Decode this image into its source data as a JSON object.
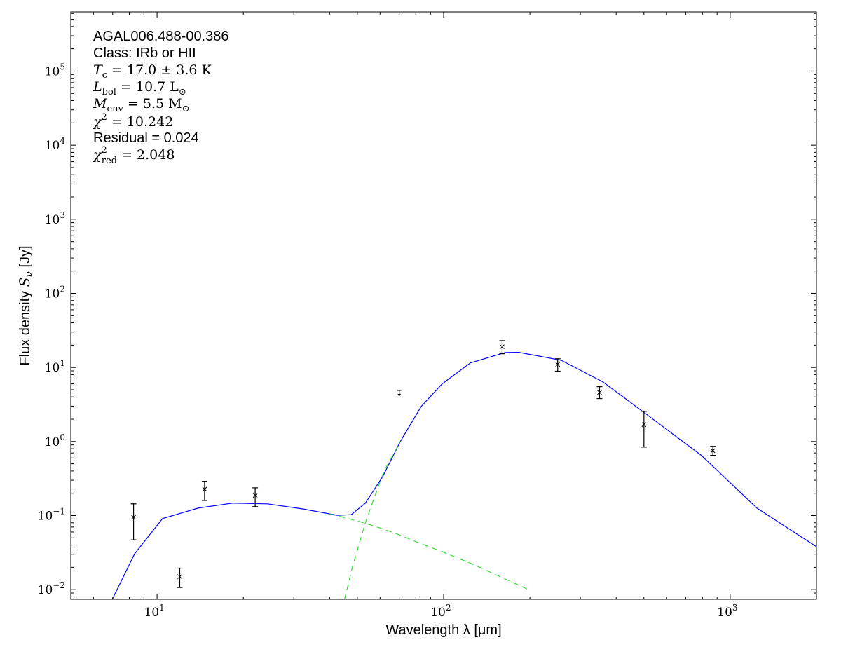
{
  "chart_data": {
    "type": "scatter",
    "xscale": "log",
    "yscale": "log",
    "xlim": [
      5,
      2000
    ],
    "ylim": [
      0.0074,
      630000
    ],
    "xlabel": "Wavelength λ [μm]",
    "ylabel_prefix": "Flux density ",
    "ylabel_math": "S",
    "ylabel_sub": "ν",
    "ylabel_suffix": " [Jy]",
    "xticks": [
      {
        "base": "10",
        "exp": "1",
        "value": 10
      },
      {
        "base": "10",
        "exp": "2",
        "value": 100
      },
      {
        "base": "10",
        "exp": "3",
        "value": 1000
      }
    ],
    "yticks": [
      {
        "base": "10",
        "exp": "−2",
        "value": 0.01
      },
      {
        "base": "10",
        "exp": "−1",
        "value": 0.1
      },
      {
        "base": "10",
        "exp": "0",
        "value": 1
      },
      {
        "base": "10",
        "exp": "1",
        "value": 10
      },
      {
        "base": "10",
        "exp": "2",
        "value": 100
      },
      {
        "base": "10",
        "exp": "3",
        "value": 1000
      },
      {
        "base": "10",
        "exp": "4",
        "value": 10000
      },
      {
        "base": "10",
        "exp": "5",
        "value": 100000
      }
    ],
    "grid": false,
    "annotations": [
      {
        "text": "AGAL006.488-00.386",
        "style": "sans"
      },
      {
        "text": "Class: IRb or HII",
        "style": "sans"
      },
      {
        "main": "T",
        "sub": "c",
        "rest": " = 17.0 ± 3.6 K",
        "style": "math"
      },
      {
        "main": "L",
        "sub": "bol",
        "rest": " = 10.7 L",
        "rest_sub": "⊙",
        "style": "math"
      },
      {
        "main": "M",
        "sub": "env",
        "rest": " = 5.5 M",
        "rest_sub": "⊙",
        "style": "math"
      },
      {
        "main": "χ",
        "sup": "2",
        "rest": " = 10.242",
        "style": "math"
      },
      {
        "text": "Residual = 0.024",
        "style": "sans"
      },
      {
        "main": "χ",
        "sup": "2",
        "sub": "red",
        "rest": " = 2.048",
        "style": "math"
      }
    ],
    "points": [
      {
        "x": 8.28,
        "y": 0.095,
        "ylo": 0.047,
        "yhi": 0.144
      },
      {
        "x": 12,
        "y": 0.015,
        "ylo": 0.0107,
        "yhi": 0.0195
      },
      {
        "x": 14.65,
        "y": 0.227,
        "ylo": 0.16,
        "yhi": 0.29
      },
      {
        "x": 22,
        "y": 0.187,
        "ylo": 0.132,
        "yhi": 0.237
      },
      {
        "x": 70,
        "y": 4.9,
        "upper_limit": true
      },
      {
        "x": 160,
        "y": 19,
        "ylo": 15.3,
        "yhi": 23
      },
      {
        "x": 250,
        "y": 11,
        "ylo": 8.9,
        "yhi": 13.1
      },
      {
        "x": 350,
        "y": 4.6,
        "ylo": 3.8,
        "yhi": 5.5
      },
      {
        "x": 500,
        "y": 1.69,
        "ylo": 0.84,
        "yhi": 2.55
      },
      {
        "x": 870,
        "y": 0.75,
        "ylo": 0.65,
        "yhi": 0.86
      }
    ],
    "series": [
      {
        "color": "#0000ff",
        "style": "solid",
        "x": [
          6.98,
          8.35,
          10.45,
          13.9,
          18.3,
          24.3,
          32.2,
          42.6,
          47.6,
          53.3,
          61.4,
          70.6,
          83.5,
          98.8,
          124,
          164,
          183,
          257,
          359,
          505,
          793,
          1240,
          2000
        ],
        "y": [
          0.0074,
          0.0305,
          0.091,
          0.126,
          0.147,
          0.144,
          0.123,
          0.101,
          0.103,
          0.147,
          0.34,
          1.0,
          2.97,
          6.0,
          11.5,
          15.9,
          16,
          12.5,
          6.4,
          2.4,
          0.65,
          0.126,
          0.038
        ]
      },
      {
        "color": "#33dd33",
        "style": "dashed",
        "x": [
          40,
          50,
          60,
          70,
          83,
          100,
          130,
          160,
          200
        ],
        "y": [
          0.105,
          0.085,
          0.068,
          0.055,
          0.042,
          0.032,
          0.021,
          0.0145,
          0.0098
        ]
      },
      {
        "color": "#33dd33",
        "style": "dashed",
        "x": [
          45.1,
          48,
          53.3,
          58,
          62,
          70.6
        ],
        "y": [
          0.0074,
          0.02,
          0.08,
          0.2,
          0.4,
          1.0
        ]
      }
    ]
  }
}
